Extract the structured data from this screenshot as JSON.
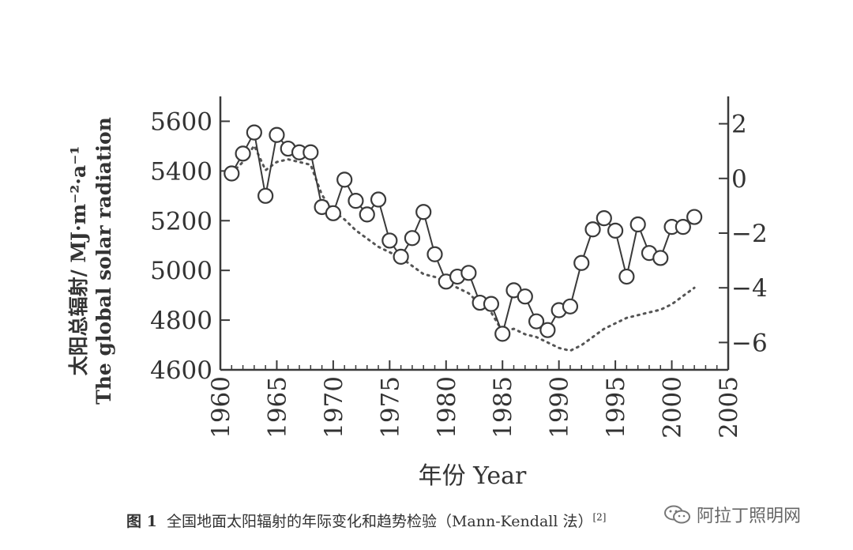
{
  "chart_data": {
    "type": "line",
    "xlabel": "年份 Year",
    "ylabel_line1": "太阳总辐射/ MJ·m⁻²·a⁻¹",
    "ylabel_line2": "The global solar radiation",
    "xlim": [
      1960,
      2005
    ],
    "ylim": [
      4600,
      5700
    ],
    "y2lim": [
      -7,
      3
    ],
    "x_ticks": [
      1960,
      1965,
      1970,
      1975,
      1980,
      1985,
      1990,
      1995,
      2000,
      2005
    ],
    "y_ticks": [
      4600,
      4800,
      5000,
      5200,
      5400,
      5600
    ],
    "y2_ticks": [
      -6,
      -4,
      -2,
      0,
      2
    ],
    "y2_tick_labels": [
      "−6",
      "−4",
      "−2",
      "0",
      "2"
    ],
    "grid": false,
    "series": [
      {
        "style": "line-with-open-circles",
        "axis": "left",
        "x": [
          1961,
          1962,
          1963,
          1964,
          1965,
          1966,
          1967,
          1968,
          1969,
          1970,
          1971,
          1972,
          1973,
          1974,
          1975,
          1976,
          1977,
          1978,
          1979,
          1980,
          1981,
          1982,
          1983,
          1984,
          1985,
          1986,
          1987,
          1988,
          1989,
          1990,
          1991,
          1992,
          1993,
          1994,
          1995,
          1996,
          1997,
          1998,
          1999,
          2000,
          2001,
          2002
        ],
        "values": [
          5390,
          5470,
          5555,
          5300,
          5545,
          5490,
          5475,
          5475,
          5255,
          5230,
          5365,
          5280,
          5225,
          5285,
          5120,
          5055,
          5130,
          5235,
          5065,
          4955,
          4975,
          4990,
          4870,
          4865,
          4745,
          4920,
          4895,
          4795,
          4760,
          4840,
          4855,
          5030,
          5165,
          5210,
          5160,
          4975,
          5185,
          5070,
          5050,
          5175,
          5175,
          5215
        ]
      },
      {
        "style": "dotted",
        "axis": "right",
        "x": [
          1961,
          1962,
          1963,
          1964,
          1965,
          1966,
          1967,
          1968,
          1969,
          1970,
          1971,
          1972,
          1973,
          1974,
          1975,
          1976,
          1977,
          1978,
          1979,
          1980,
          1981,
          1982,
          1983,
          1984,
          1985,
          1986,
          1987,
          1988,
          1989,
          1990,
          1991,
          1992,
          1993,
          1994,
          1995,
          1996,
          1997,
          1998,
          1999,
          2000,
          2001,
          2002
        ],
        "values": [
          0.2,
          0.6,
          1.2,
          0.3,
          0.6,
          0.7,
          0.6,
          0.5,
          -0.6,
          -1.2,
          -1.5,
          -1.9,
          -2.2,
          -2.5,
          -2.7,
          -2.9,
          -3.2,
          -3.5,
          -3.6,
          -3.8,
          -4.0,
          -4.2,
          -4.6,
          -4.9,
          -5.6,
          -5.5,
          -5.7,
          -5.8,
          -6.0,
          -6.2,
          -6.3,
          -6.1,
          -5.8,
          -5.5,
          -5.3,
          -5.1,
          -5.0,
          -4.9,
          -4.8,
          -4.6,
          -4.3,
          -4.0
        ]
      }
    ]
  },
  "caption": {
    "prefix": "图 1",
    "text": "全国地面太阳辐射的年际变化和趋势检验（Mann-Kendall 法）",
    "ref": "[2]"
  },
  "watermark": {
    "text": "阿拉丁照明网",
    "icon": "wechat-icon"
  },
  "colors": {
    "line": "#3a3a3a",
    "marker_fill": "#ffffff"
  }
}
